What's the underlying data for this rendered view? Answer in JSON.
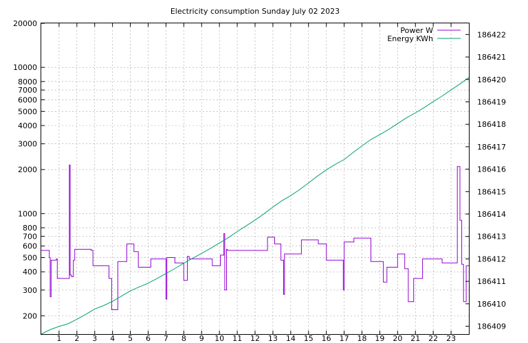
{
  "chart_data": {
    "type": "line",
    "title": "Electricity consumption Sunday July 02 2023",
    "xlabel": "",
    "ylabel": "",
    "y2label": "",
    "grid": true,
    "legend_position": "top-right",
    "xlim": [
      0,
      24
    ],
    "ylim": [
      150,
      20000
    ],
    "y_scale": "log",
    "y2lim": [
      186408.65,
      186422.5
    ],
    "x_ticks": [
      "1",
      "2",
      "3",
      "4",
      "5",
      "6",
      "7",
      "8",
      "9",
      "10",
      "11",
      "12",
      "13",
      "14",
      "15",
      "16",
      "17",
      "18",
      "19",
      "20",
      "21",
      "22",
      "23"
    ],
    "y_ticks": [
      200,
      300,
      400,
      500,
      600,
      700,
      800,
      1000,
      2000,
      3000,
      4000,
      5000,
      6000,
      7000,
      8000,
      10000,
      20000
    ],
    "y_tick_labels": [
      "200",
      "300",
      "400",
      "500",
      "600",
      "700",
      "800",
      "1000",
      "2000",
      "3000",
      "4000",
      "5000",
      "6000",
      "7000",
      "8000",
      "10000",
      "20000"
    ],
    "y2_ticks": [
      "186409",
      "186410",
      "186411",
      "186412",
      "186413",
      "186414",
      "186415",
      "186416",
      "186417",
      "186418",
      "186419",
      "186420",
      "186421",
      "186422"
    ],
    "colors": {
      "power": "#9400d3",
      "energy": "#009e73"
    },
    "series": [
      {
        "name": "Power W",
        "axis": "left",
        "step": true,
        "x": [
          0,
          0.45,
          0.5,
          0.55,
          0.85,
          0.9,
          1.55,
          1.58,
          1.62,
          1.7,
          1.8,
          1.88,
          2.8,
          2.9,
          3.75,
          3.8,
          3.95,
          4.3,
          4.35,
          4.8,
          5.0,
          5.2,
          5.45,
          6.1,
          6.15,
          6.95,
          7.0,
          7.05,
          7.5,
          7.6,
          8.0,
          8.2,
          8.3,
          8.55,
          9.6,
          9.65,
          10.05,
          10.25,
          10.3,
          10.4,
          10.45,
          11.0,
          12.0,
          12.1,
          12.7,
          12.8,
          13.1,
          13.2,
          13.45,
          13.6,
          13.65,
          13.8,
          14.5,
          14.6,
          14.95,
          15.45,
          15.55,
          16.0,
          16.3,
          16.85,
          16.95,
          17.0,
          17.45,
          17.55,
          18.35,
          18.5,
          18.7,
          19.2,
          19.4,
          20.0,
          20.35,
          20.4,
          20.6,
          20.9,
          21.4,
          21.8,
          22.5,
          23.2,
          23.25,
          23.35,
          23.5,
          23.6,
          23.7,
          23.85,
          24.0
        ],
        "values": [
          560,
          500,
          270,
          480,
          490,
          360,
          360,
          2150,
          380,
          370,
          480,
          570,
          560,
          440,
          440,
          360,
          220,
          470,
          470,
          620,
          620,
          550,
          430,
          430,
          490,
          490,
          260,
          500,
          460,
          460,
          350,
          510,
          490,
          490,
          440,
          440,
          520,
          730,
          300,
          570,
          560,
          560,
          560,
          560,
          690,
          690,
          620,
          620,
          480,
          280,
          530,
          530,
          530,
          660,
          660,
          660,
          620,
          480,
          480,
          480,
          300,
          640,
          640,
          680,
          680,
          470,
          470,
          340,
          430,
          530,
          530,
          420,
          250,
          360,
          490,
          490,
          460,
          460,
          460,
          2100,
          900,
          450,
          250,
          440,
          440
        ],
        "last_value": 440
      },
      {
        "name": "Energy KWh",
        "axis": "right",
        "step": false,
        "x": [
          0,
          0.5,
          1,
          1.5,
          2,
          2.5,
          3,
          3.5,
          4,
          4.5,
          5,
          5.5,
          6,
          6.5,
          7,
          7.5,
          8,
          8.5,
          9,
          9.5,
          10,
          10.5,
          11,
          11.5,
          12,
          12.5,
          13,
          13.5,
          14,
          14.5,
          15,
          15.5,
          16,
          16.5,
          17,
          17.5,
          18,
          18.5,
          19,
          19.5,
          20,
          20.5,
          21,
          21.5,
          22,
          22.5,
          23,
          23.5,
          24
        ],
        "values": [
          186408.65,
          186408.85,
          186408.99,
          186409.11,
          186409.31,
          186409.53,
          186409.77,
          186409.92,
          186410.11,
          186410.34,
          186410.58,
          186410.75,
          186410.92,
          186411.13,
          186411.35,
          186411.57,
          186411.81,
          186412.03,
          186412.25,
          186412.47,
          186412.71,
          186412.95,
          186413.22,
          186413.47,
          186413.73,
          186414.01,
          186414.31,
          186414.59,
          186414.82,
          186415.09,
          186415.39,
          186415.69,
          186415.97,
          186416.21,
          186416.43,
          186416.74,
          186417.04,
          186417.32,
          186417.54,
          186417.77,
          186418.03,
          186418.29,
          186418.51,
          186418.75,
          186419.01,
          186419.26,
          186419.53,
          186419.8,
          186420.08
        ]
      }
    ]
  }
}
